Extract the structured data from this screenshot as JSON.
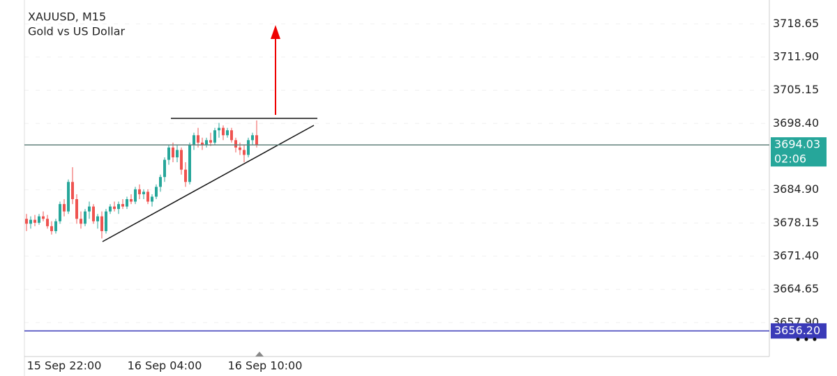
{
  "chart_data": {
    "type": "candlestick",
    "title": "XAUUSD, M15",
    "subtitle": "Gold vs US Dollar",
    "categories": [
      null,
      null,
      null,
      null,
      null,
      null,
      null,
      null,
      null,
      "15 Sep 22:00",
      null,
      null,
      null,
      null,
      null,
      null,
      null,
      null,
      null,
      null,
      null,
      null,
      null,
      null,
      null,
      null,
      null,
      null,
      null,
      null,
      null,
      null,
      null,
      "16 Sep 04:00",
      null,
      null,
      null,
      null,
      null,
      null,
      null,
      null,
      null,
      null,
      null,
      null,
      null,
      null,
      null,
      null,
      null,
      null,
      null,
      null,
      null,
      null,
      null,
      "16 Sep 10:00"
    ],
    "open": [
      3679,
      3678,
      3678.8,
      3678.2,
      3679.5,
      3679,
      3677.5,
      3676.5,
      3678.5,
      3682,
      3680.5,
      3686.5,
      3683,
      3679,
      3678,
      3680.5,
      3681.5,
      3678.5,
      3679.5,
      3676.5,
      3680.5,
      3681.5,
      3681,
      3682,
      3681.5,
      3683,
      3682.5,
      3685,
      3684,
      3684.5,
      3682.5,
      3683.5,
      3685.5,
      3687.5,
      3691,
      3693.5,
      3691.5,
      3693,
      3689,
      3686.5,
      3694,
      3696,
      3694.5,
      3694,
      3695,
      3694.5,
      3697,
      3697.5,
      3696,
      3697,
      3695,
      3693.5,
      3693,
      3692,
      3695,
      3696,
      null,
      null
    ],
    "high": [
      3680,
      3679.5,
      3679.8,
      3680,
      3680.5,
      3679.8,
      3678.5,
      3679,
      3682.5,
      3683,
      3687,
      3689.5,
      3684,
      3680.5,
      3681,
      3682.5,
      3682,
      3680,
      3680.5,
      3681,
      3682,
      3682.5,
      3682.5,
      3683,
      3683.5,
      3684,
      3685.5,
      3686,
      3685,
      3685,
      3684,
      3686,
      3688,
      3691.5,
      3694,
      3694.5,
      3694,
      3693.5,
      3690.5,
      3694.5,
      3696.5,
      3697.5,
      3695.5,
      3695.5,
      3696.5,
      3697.5,
      3698.5,
      3698,
      3697.5,
      3697.5,
      3695.5,
      3694.5,
      3694,
      3695.5,
      3696.5,
      3699,
      null,
      null
    ],
    "low": [
      3676.5,
      3677,
      3677.5,
      3677.8,
      3678.5,
      3677,
      3675.8,
      3676,
      3678,
      3679.5,
      3680,
      3682,
      3678,
      3677,
      3677.5,
      3679,
      3678,
      3677,
      3675,
      3676,
      3680,
      3680.5,
      3680,
      3681,
      3681,
      3682,
      3682,
      3683,
      3683,
      3682,
      3681.5,
      3683,
      3684.5,
      3686.5,
      3690,
      3690.5,
      3690.5,
      3688,
      3685.5,
      3686,
      3693,
      3693.5,
      3693,
      3693.5,
      3693.8,
      3694,
      3695.5,
      3695,
      3695.5,
      3694.5,
      3692.5,
      3692,
      3690.5,
      3691.5,
      3694,
      3693.5,
      null,
      null
    ],
    "close": [
      3678,
      3678.8,
      3678.2,
      3679.5,
      3679,
      3677.5,
      3676.5,
      3678.5,
      3682,
      3680.5,
      3686.5,
      3683,
      3679,
      3678,
      3680.5,
      3681.5,
      3678.5,
      3679.5,
      3676.5,
      3680.5,
      3681.5,
      3681,
      3682,
      3681.5,
      3683,
      3682.5,
      3685,
      3684,
      3684.5,
      3682.5,
      3683.5,
      3685.5,
      3687.5,
      3691,
      3693.5,
      3691.5,
      3693,
      3689,
      3686.5,
      3694,
      3696,
      3694.5,
      3694,
      3695,
      3694.5,
      3697,
      3697.5,
      3696,
      3697,
      3695,
      3693.5,
      3693,
      3692,
      3695,
      3696,
      3694,
      null,
      null
    ],
    "up_color": "#26a69a",
    "down_color": "#ef5350",
    "ylim": [
      3651,
      3723.5
    ],
    "yticks": [
      3718.65,
      {
        "value": 3711.9,
        "label": "3711.90"
      },
      3705.15,
      {
        "value": 3698.4,
        "label": "3698.40"
      },
      {
        "value": 3684.9,
        "label": "3684.90"
      },
      3678.15,
      {
        "value": 3671.4,
        "label": "3671.40"
      },
      3664.65,
      {
        "value": 3657.9,
        "label": "3657.90"
      }
    ],
    "grid": true,
    "current_price": 3694.03,
    "countdown": "02:06",
    "current_price_color": "#26a69a",
    "level": {
      "value": 3656.2,
      "label": "3656.20"
    },
    "level_color": "#3a3ab8"
  }
}
